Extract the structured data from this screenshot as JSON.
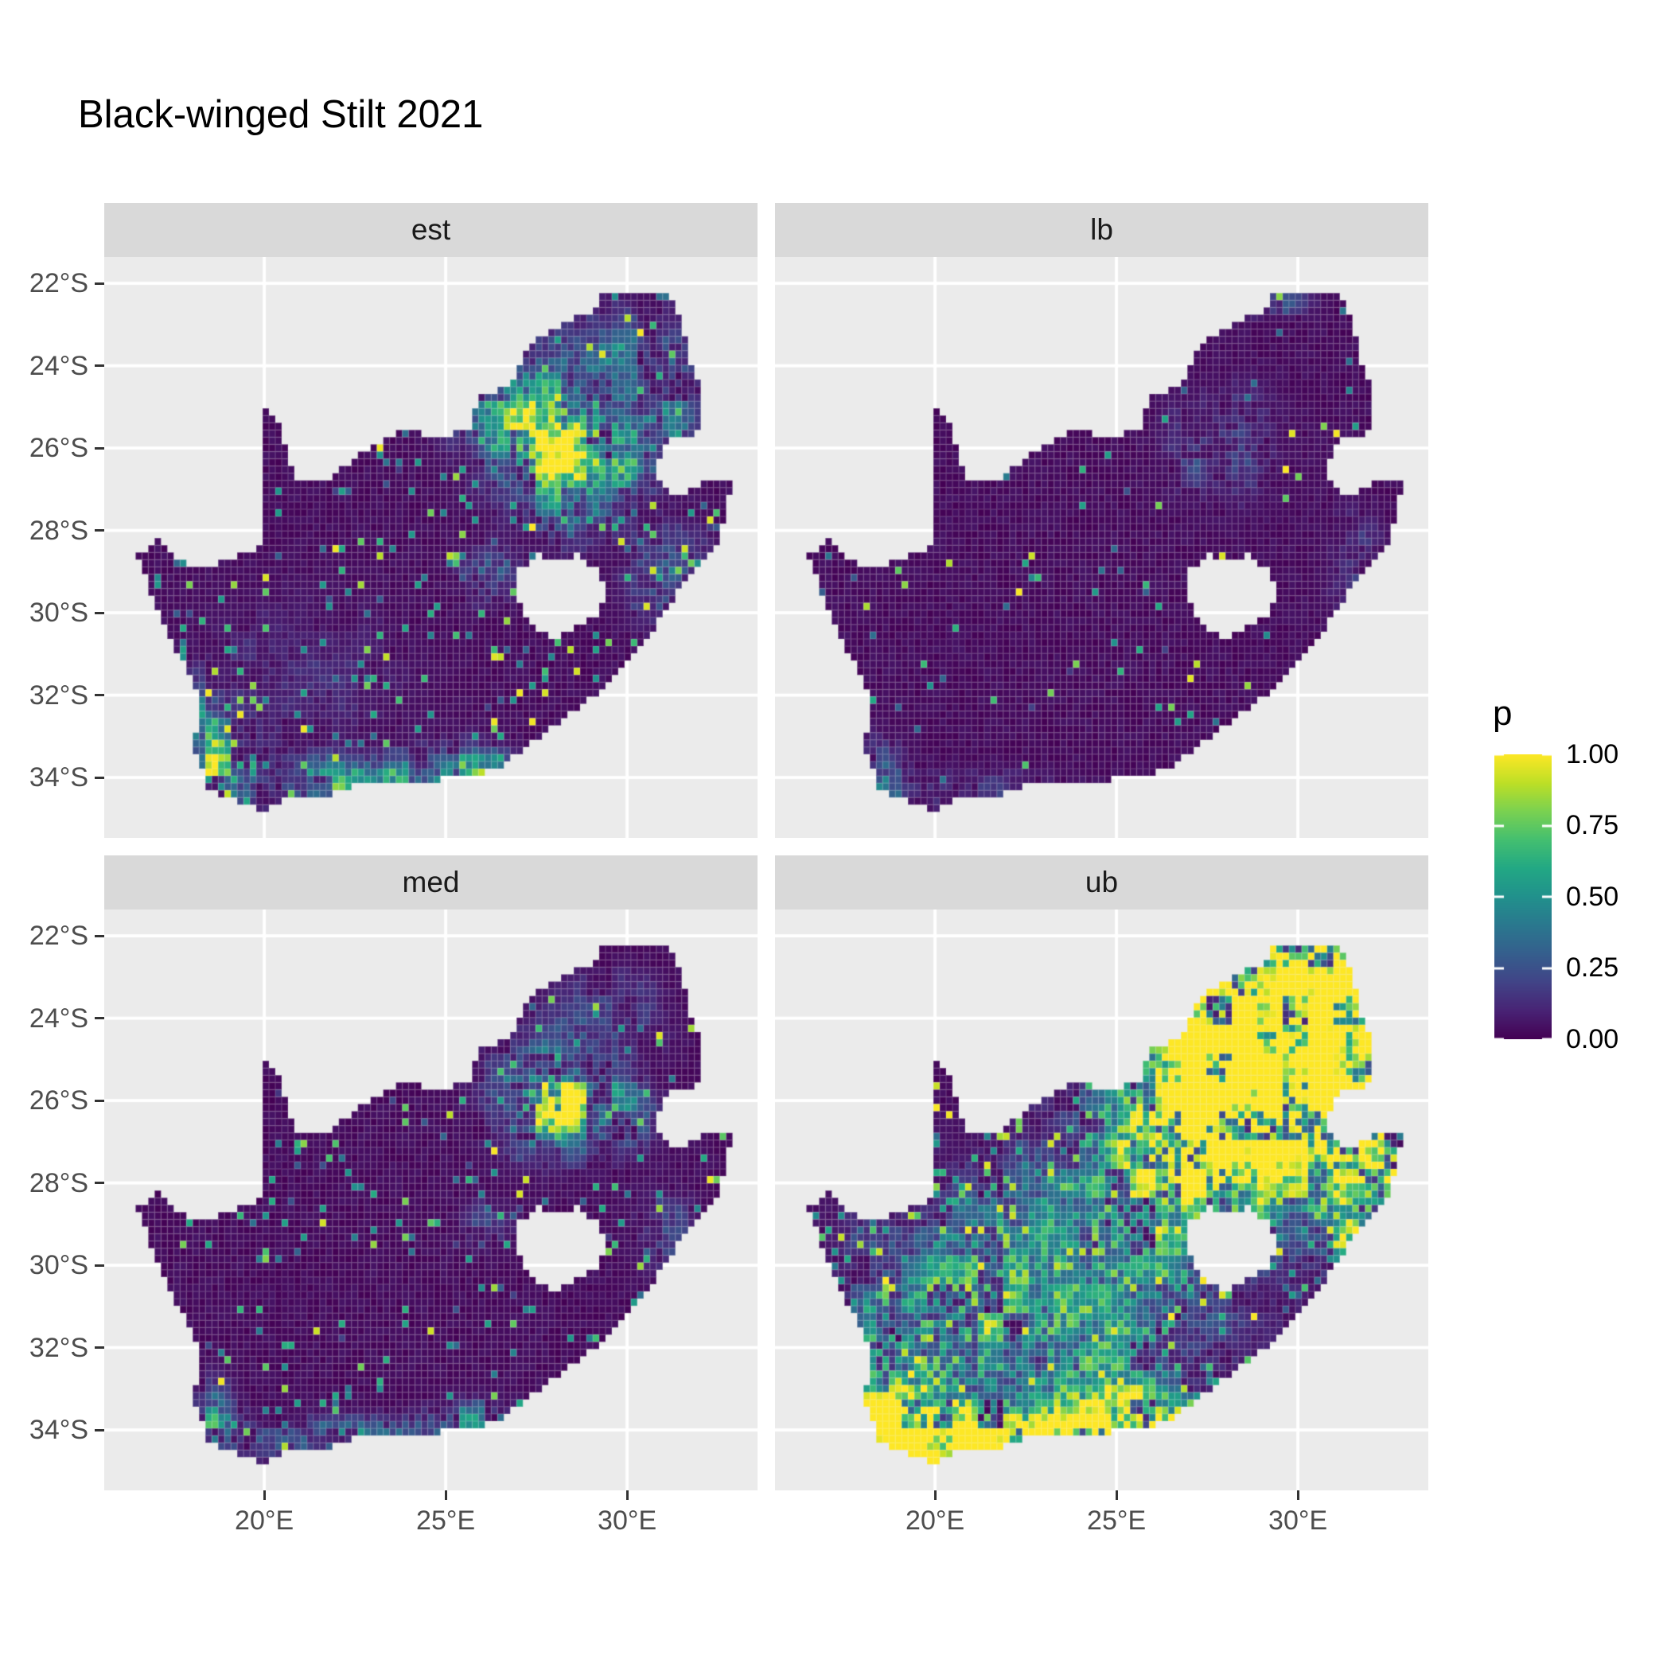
{
  "title": "Black-winged Stilt 2021",
  "chart_data": {
    "type": "heatmap",
    "subtype": "faceted-raster-probability-map",
    "region": "South Africa",
    "title": "Black-winged Stilt 2021",
    "x_axis": {
      "ticks": [
        {
          "value": 20,
          "label": "20°E"
        },
        {
          "value": 25,
          "label": "25°E"
        },
        {
          "value": 30,
          "label": "30°E"
        }
      ]
    },
    "y_axis": {
      "ticks": [
        {
          "value": -22,
          "label": "22°S"
        },
        {
          "value": -24,
          "label": "24°S"
        },
        {
          "value": -26,
          "label": "26°S"
        },
        {
          "value": -28,
          "label": "28°S"
        },
        {
          "value": -30,
          "label": "30°S"
        },
        {
          "value": -32,
          "label": "32°S"
        },
        {
          "value": -34,
          "label": "34°S"
        }
      ]
    },
    "lon_range": [
      15.59,
      33.59
    ],
    "lat_range": [
      -35.47,
      -21.36
    ],
    "grid": "major-only",
    "legend": {
      "title": "p",
      "position": "right",
      "tick_labels": [
        "1.00",
        "0.75",
        "0.50",
        "0.25",
        "0.00"
      ],
      "ticks": [
        1.0,
        0.75,
        0.5,
        0.25,
        0.0
      ],
      "colormap": "viridis",
      "stops": [
        {
          "t": 0.0,
          "hex": "#440154"
        },
        {
          "t": 0.1,
          "hex": "#482475"
        },
        {
          "t": 0.2,
          "hex": "#414487"
        },
        {
          "t": 0.3,
          "hex": "#355F8D"
        },
        {
          "t": 0.4,
          "hex": "#2A788E"
        },
        {
          "t": 0.5,
          "hex": "#21918C"
        },
        {
          "t": 0.6,
          "hex": "#22A884"
        },
        {
          "t": 0.7,
          "hex": "#44BF70"
        },
        {
          "t": 0.8,
          "hex": "#7AD151"
        },
        {
          "t": 0.9,
          "hex": "#BDDF26"
        },
        {
          "t": 1.0,
          "hex": "#FDE725"
        }
      ]
    },
    "cell_size_deg": 0.175,
    "facets": [
      {
        "label": "est",
        "seed": 11,
        "spike_prob": 0.042,
        "spike_lo": 0.35,
        "mid_prob": 0.03,
        "hotspots": [
          [
            28.0,
            -26.05,
            0.5,
            0.45,
            1.25
          ],
          [
            28.0,
            -25.85,
            1.35,
            1.05,
            0.55
          ],
          [
            26.85,
            -25.05,
            1.0,
            0.8,
            0.32
          ],
          [
            29.9,
            -26.3,
            0.85,
            0.6,
            0.4
          ],
          [
            29.6,
            -23.7,
            1.3,
            0.9,
            0.25
          ],
          [
            31.4,
            -24.9,
            0.7,
            1.0,
            0.22
          ],
          [
            31.2,
            -29.2,
            0.85,
            0.9,
            0.3
          ],
          [
            26.2,
            -29.1,
            0.55,
            0.45,
            0.3
          ],
          [
            28.4,
            -27.7,
            0.7,
            0.5,
            0.25
          ],
          [
            18.6,
            -33.9,
            0.55,
            0.7,
            0.6
          ],
          [
            18.35,
            -32.7,
            0.4,
            0.7,
            0.3
          ],
          [
            22.8,
            -34.15,
            2.6,
            0.4,
            0.45
          ],
          [
            25.7,
            -33.9,
            1.0,
            0.5,
            0.4
          ],
          [
            20.8,
            -31.6,
            2.4,
            1.7,
            0.1
          ]
        ]
      },
      {
        "label": "lb",
        "seed": 22,
        "spike_prob": 0.013,
        "spike_lo": 0.3,
        "mid_prob": 0.005,
        "hotspots": [
          [
            28.05,
            -26.0,
            1.15,
            0.95,
            0.22
          ],
          [
            18.5,
            -33.9,
            0.5,
            0.65,
            0.28
          ],
          [
            21.5,
            -34.35,
            2.8,
            0.35,
            0.16
          ],
          [
            29.4,
            -22.4,
            0.8,
            0.3,
            0.25
          ],
          [
            31.6,
            -28.8,
            0.6,
            1.0,
            0.15
          ]
        ]
      },
      {
        "label": "med",
        "seed": 33,
        "spike_prob": 0.03,
        "spike_lo": 0.35,
        "mid_prob": 0.022,
        "hotspots": [
          [
            28.0,
            -26.05,
            0.55,
            0.5,
            0.85
          ],
          [
            28.0,
            -25.85,
            1.25,
            1.0,
            0.42
          ],
          [
            29.9,
            -26.3,
            0.75,
            0.55,
            0.3
          ],
          [
            26.2,
            -29.1,
            0.5,
            0.45,
            0.22
          ],
          [
            31.2,
            -29.3,
            0.75,
            0.85,
            0.2
          ],
          [
            18.6,
            -33.9,
            0.5,
            0.65,
            0.5
          ],
          [
            22.8,
            -34.2,
            2.6,
            0.35,
            0.35
          ],
          [
            25.7,
            -33.9,
            0.9,
            0.5,
            0.32
          ],
          [
            29.6,
            -23.8,
            1.1,
            0.8,
            0.15
          ]
        ]
      },
      {
        "label": "ub",
        "seed": 44,
        "spike_prob": 0.105,
        "spike_lo": 0.45,
        "mid_prob": 0.05,
        "hotspots": [
          [
            27.9,
            -26.2,
            1.7,
            1.35,
            1.7
          ],
          [
            29.3,
            -24.8,
            1.9,
            1.5,
            1.05
          ],
          [
            29.9,
            -22.8,
            1.6,
            0.7,
            0.9
          ],
          [
            31.3,
            -23.7,
            1.0,
            1.1,
            0.85
          ],
          [
            31.5,
            -26.2,
            0.9,
            1.2,
            0.8
          ],
          [
            31.8,
            -28.5,
            0.9,
            1.3,
            0.7
          ],
          [
            27.0,
            -28.6,
            2.2,
            1.4,
            0.33
          ],
          [
            18.9,
            -33.8,
            1.05,
            1.15,
            1.35
          ],
          [
            21.5,
            -34.3,
            3.2,
            0.5,
            1.35
          ],
          [
            25.6,
            -33.85,
            1.4,
            0.6,
            1.0
          ],
          [
            23.7,
            -31.7,
            2.6,
            1.8,
            0.42
          ],
          [
            20.2,
            -30.6,
            1.9,
            1.6,
            0.3
          ],
          [
            24.5,
            -28.6,
            2.5,
            1.5,
            0.18
          ]
        ]
      }
    ],
    "map": {
      "mainland": [
        [
          16.45,
          -28.6
        ],
        [
          17.1,
          -28.25
        ],
        [
          17.45,
          -28.62
        ],
        [
          18.2,
          -28.9
        ],
        [
          19.0,
          -28.72
        ],
        [
          19.55,
          -28.5
        ],
        [
          19.98,
          -28.42
        ],
        [
          19.98,
          -24.9
        ],
        [
          20.35,
          -25.35
        ],
        [
          20.6,
          -25.95
        ],
        [
          20.82,
          -26.6
        ],
        [
          20.9,
          -26.85
        ],
        [
          21.65,
          -26.85
        ],
        [
          22.25,
          -26.4
        ],
        [
          22.9,
          -25.98
        ],
        [
          23.6,
          -25.62
        ],
        [
          24.2,
          -25.62
        ],
        [
          24.75,
          -25.82
        ],
        [
          25.35,
          -25.58
        ],
        [
          25.65,
          -25.48
        ],
        [
          25.95,
          -24.75
        ],
        [
          26.45,
          -24.6
        ],
        [
          26.9,
          -24.3
        ],
        [
          27.2,
          -23.62
        ],
        [
          27.72,
          -23.22
        ],
        [
          28.25,
          -22.95
        ],
        [
          29.05,
          -22.72
        ],
        [
          29.4,
          -22.18
        ],
        [
          30.05,
          -22.22
        ],
        [
          30.65,
          -22.3
        ],
        [
          31.15,
          -22.32
        ],
        [
          31.3,
          -22.42
        ],
        [
          31.56,
          -23.2
        ],
        [
          31.72,
          -23.85
        ],
        [
          31.98,
          -24.45
        ],
        [
          31.98,
          -25.1
        ],
        [
          32.02,
          -25.62
        ],
        [
          31.4,
          -25.72
        ],
        [
          30.95,
          -26.0
        ],
        [
          30.82,
          -26.45
        ],
        [
          30.92,
          -26.82
        ],
        [
          31.2,
          -27.2
        ],
        [
          32.1,
          -26.86
        ],
        [
          32.88,
          -26.86
        ],
        [
          32.55,
          -28.2
        ],
        [
          32.05,
          -28.85
        ],
        [
          31.4,
          -29.5
        ],
        [
          30.7,
          -30.42
        ],
        [
          30.0,
          -31.1
        ],
        [
          29.2,
          -31.92
        ],
        [
          28.3,
          -32.55
        ],
        [
          27.5,
          -33.05
        ],
        [
          26.45,
          -33.75
        ],
        [
          25.65,
          -33.98
        ],
        [
          25.0,
          -34.02
        ],
        [
          24.2,
          -34.12
        ],
        [
          23.4,
          -34.1
        ],
        [
          22.55,
          -34.18
        ],
        [
          21.8,
          -34.42
        ],
        [
          20.8,
          -34.46
        ],
        [
          20.0,
          -34.83
        ],
        [
          19.4,
          -34.62
        ],
        [
          18.82,
          -34.4
        ],
        [
          18.47,
          -34.32
        ],
        [
          18.36,
          -33.92
        ],
        [
          17.98,
          -33.15
        ],
        [
          18.28,
          -32.55
        ],
        [
          18.12,
          -31.9
        ],
        [
          17.58,
          -30.9
        ],
        [
          17.08,
          -29.92
        ],
        [
          16.78,
          -29.25
        ]
      ],
      "lesotho_hole": [
        [
          27.02,
          -28.92
        ],
        [
          27.55,
          -28.6
        ],
        [
          28.15,
          -28.72
        ],
        [
          28.68,
          -28.6
        ],
        [
          29.12,
          -28.92
        ],
        [
          29.38,
          -29.3
        ],
        [
          29.46,
          -29.65
        ],
        [
          29.1,
          -30.12
        ],
        [
          28.52,
          -30.42
        ],
        [
          27.92,
          -30.64
        ],
        [
          27.38,
          -30.32
        ],
        [
          27.0,
          -29.7
        ]
      ]
    },
    "style": {
      "panel_bg": "#EBEBEB",
      "strip_bg": "#D9D9D9",
      "gridline": "#FFFFFF",
      "axis_text": "#4D4D4D",
      "tick_mark": "#333333",
      "strip_text": "#1A1A1A",
      "title_color": "#000000",
      "background": "#FFFFFF"
    }
  }
}
